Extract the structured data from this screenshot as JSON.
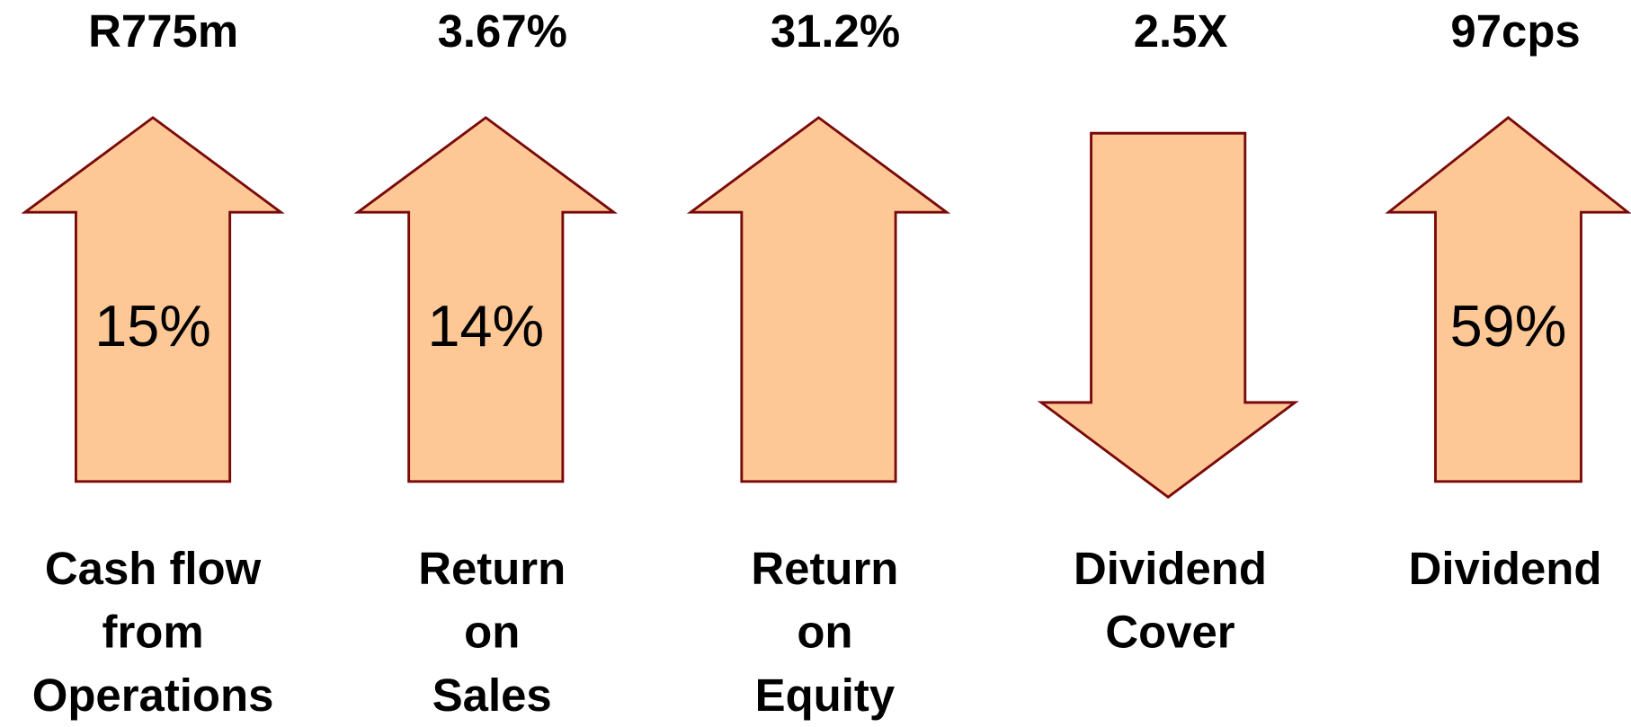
{
  "items": [
    {
      "value": "R775m",
      "change": "15%",
      "direction": "up",
      "label": [
        "Cash flow",
        "from",
        "Operations"
      ]
    },
    {
      "value": "3.67%",
      "change": "14%",
      "direction": "up",
      "label": [
        "Return",
        "on",
        "Sales"
      ]
    },
    {
      "value": "31.2%",
      "direction": "up",
      "label": [
        "Return",
        "on",
        "Equity"
      ]
    },
    {
      "value": "2.5X",
      "direction": "down",
      "label": [
        "Dividend",
        "Cover"
      ]
    },
    {
      "value": "97cps",
      "change": "59%",
      "direction": "up",
      "label": [
        "Dividend"
      ]
    }
  ]
}
